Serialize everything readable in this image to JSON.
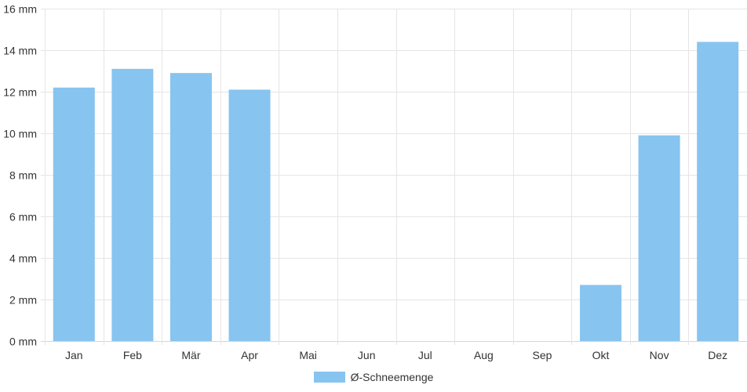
{
  "chart_data": {
    "type": "bar",
    "categories": [
      "Jan",
      "Feb",
      "Mär",
      "Apr",
      "Mai",
      "Jun",
      "Jul",
      "Aug",
      "Sep",
      "Okt",
      "Nov",
      "Dez"
    ],
    "series": [
      {
        "name": "Ø-Schneemenge",
        "values": [
          12.2,
          13.1,
          12.9,
          12.1,
          0,
          0,
          0,
          0,
          0,
          2.7,
          9.9,
          14.4
        ],
        "color": "#87c4f0"
      }
    ],
    "ylim": [
      0,
      16
    ],
    "yticks": [
      0,
      2,
      4,
      6,
      8,
      10,
      12,
      14,
      16
    ],
    "yunit": "mm",
    "grid": true,
    "legend_position": "bottom-center"
  }
}
